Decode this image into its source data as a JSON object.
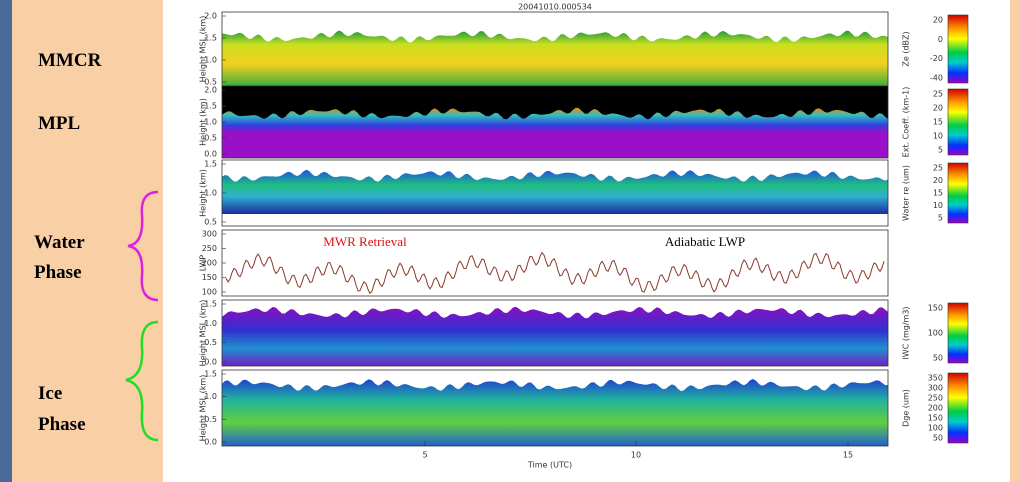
{
  "labels": {
    "mmcr": "MMCR",
    "mpl": "MPL",
    "water": [
      "Water",
      "Phase"
    ],
    "ice": [
      "Ice",
      "Phase"
    ]
  },
  "figure": {
    "title": "20041010.000534",
    "xlabel": "Time (UTC)",
    "xticks": [
      "5",
      "10",
      "15"
    ],
    "annotations": {
      "mwr": "MWR Retrieval",
      "adiabatic": "Adiabatic LWP"
    },
    "panels": [
      {
        "ylabel": "Height MSL (km)",
        "yticks": [
          "2.0",
          "1.5",
          "1.0",
          "0.5"
        ],
        "cbar_label": "Ze (dBZ)",
        "cbar_ticks": [
          "20",
          "0",
          "-20",
          "-40"
        ]
      },
      {
        "ylabel": "Height (km)",
        "yticks": [
          "2.0",
          "1.5",
          "1.0",
          "0.5",
          "0.0"
        ],
        "cbar_label": "Ext. Coeff. (km-1)",
        "cbar_ticks": [
          "25",
          "20",
          "15",
          "10",
          "5"
        ]
      },
      {
        "ylabel": "Height (km)",
        "yticks": [
          "1.5",
          "1.0",
          "0.5"
        ],
        "cbar_label": "Water re (um)",
        "cbar_ticks": [
          "25",
          "20",
          "15",
          "10",
          "5"
        ]
      },
      {
        "ylabel": "LWP",
        "yticks": [
          "300",
          "250",
          "200",
          "150",
          "100"
        ]
      },
      {
        "ylabel": "Height MSL (km)",
        "yticks": [
          "1.5",
          "1.0",
          "0.5",
          "0.0"
        ],
        "cbar_label": "IWC (mg/m3)",
        "cbar_ticks": [
          "150",
          "100",
          "50"
        ]
      },
      {
        "ylabel": "Height MSL (km)",
        "yticks": [
          "1.5",
          "1.0",
          "0.5",
          "0.0"
        ],
        "cbar_label": "Dge (um)",
        "cbar_ticks": [
          "350",
          "300",
          "250",
          "200",
          "150",
          "100",
          "50"
        ]
      }
    ]
  }
}
